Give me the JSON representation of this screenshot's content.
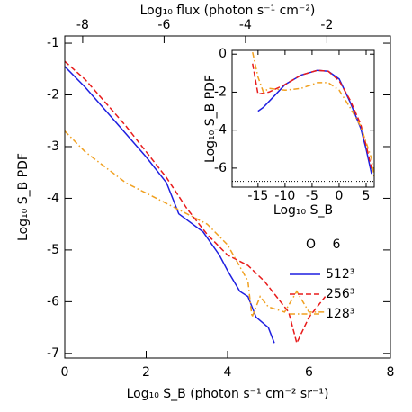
{
  "chart_data": [
    {
      "type": "line",
      "xlabel": "Log₁₀ S_B (photon s⁻¹ cm⁻² sr⁻¹)",
      "ylabel": "Log₁₀ S_B PDF",
      "x2label": "Log₁₀ flux (photon s⁻¹ cm⁻²)",
      "xlim": [
        0,
        8
      ],
      "xticks": [
        0,
        2,
        4,
        6,
        8
      ],
      "x2lim": [
        -8.44,
        -0.44
      ],
      "x2ticks": [
        -8,
        -6,
        -4,
        -2
      ],
      "ylim": [
        -7.09,
        -0.86
      ],
      "yticks": [
        -7,
        -6,
        -5,
        -4,
        -3,
        -2,
        -1
      ],
      "legend_title": "O 6",
      "series": [
        {
          "name": "512³",
          "color": "#1f1fe0",
          "style": "solid",
          "x": [
            0,
            0.5,
            1,
            1.5,
            2,
            2.5,
            2.8,
            3.4,
            3.8,
            4.0,
            4.3,
            4.5,
            4.7,
            5.0,
            5.15
          ],
          "values": [
            -1.45,
            -1.85,
            -2.3,
            -2.75,
            -3.2,
            -3.7,
            -4.3,
            -4.65,
            -5.1,
            -5.4,
            -5.8,
            -5.9,
            -6.3,
            -6.5,
            -6.8
          ]
        },
        {
          "name": "256³",
          "color": "#e81b1b",
          "style": "dashed",
          "x": [
            0,
            0.5,
            1,
            1.5,
            2,
            2.5,
            3,
            3.5,
            4,
            4.5,
            4.9,
            5.2,
            5.5,
            5.7,
            6.0,
            6.4
          ],
          "values": [
            -1.35,
            -1.7,
            -2.15,
            -2.6,
            -3.1,
            -3.6,
            -4.2,
            -4.7,
            -5.1,
            -5.3,
            -5.6,
            -5.9,
            -6.2,
            -6.8,
            -6.3,
            -5.9
          ]
        },
        {
          "name": "128³",
          "color": "#f0a020",
          "style": "dashdot",
          "x": [
            0,
            0.5,
            1,
            1.5,
            2,
            2.5,
            3,
            3.5,
            4,
            4.5,
            4.6,
            4.8,
            5.0,
            5.4,
            5.7,
            6.0,
            6.4
          ],
          "values": [
            -2.7,
            -3.1,
            -3.4,
            -3.7,
            -3.9,
            -4.1,
            -4.3,
            -4.5,
            -4.9,
            -5.6,
            -6.3,
            -5.9,
            -6.1,
            -6.2,
            -5.8,
            -6.2,
            -6.2
          ]
        }
      ]
    },
    {
      "type": "line",
      "xlabel": "Log₁₀ S_B",
      "ylabel": "Log₁₀ S_B PDF",
      "xlim": [
        -19.8,
        6.5
      ],
      "xticks": [
        -15,
        -10,
        -5,
        0,
        5
      ],
      "ylim": [
        -7,
        0.2
      ],
      "yticks": [
        -6,
        -4,
        -2,
        0
      ],
      "hline": -6.7,
      "series": [
        {
          "color": "#1f1fe0",
          "style": "solid",
          "x": [
            -15,
            -14,
            -12,
            -10,
            -7,
            -4,
            -2,
            0,
            2,
            4,
            5,
            6
          ],
          "values": [
            -3,
            -2.8,
            -2.2,
            -1.6,
            -1.1,
            -0.85,
            -0.9,
            -1.3,
            -2.5,
            -3.9,
            -5,
            -6.3
          ]
        },
        {
          "color": "#e81b1b",
          "style": "dashed",
          "x": [
            -16,
            -15,
            -13,
            -10,
            -7,
            -4,
            -2,
            0,
            2,
            4,
            5,
            6
          ],
          "values": [
            -0.5,
            -2.1,
            -2.0,
            -1.6,
            -1.1,
            -0.85,
            -0.9,
            -1.4,
            -2.4,
            -3.7,
            -4.8,
            -6
          ]
        },
        {
          "color": "#f0a020",
          "style": "dashdot",
          "x": [
            -16,
            -15,
            -14,
            -13,
            -10,
            -7,
            -4,
            -2,
            0,
            2,
            4,
            6,
            6.5
          ],
          "values": [
            0.1,
            -1.2,
            -2.0,
            -1.8,
            -1.9,
            -1.8,
            -1.5,
            -1.5,
            -1.9,
            -2.8,
            -3.8,
            -5.5,
            -6.5
          ]
        }
      ]
    }
  ]
}
